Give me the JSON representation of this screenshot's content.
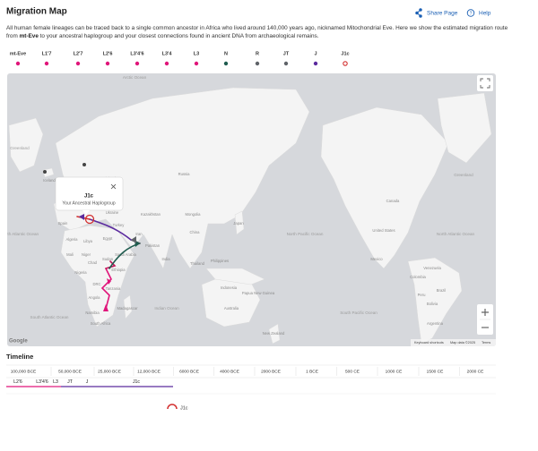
{
  "header": {
    "title": "Migration Map",
    "share": "Share Page",
    "help": "Help"
  },
  "description": [
    "All human female lineages can be traced back to a single common ancestor in Africa who lived around 140,000 years ago, nicknamed Mitochondrial Eve. Here we show the estimated migration route from ",
    "mt-Eve",
    " to your ancestral haplogroup and your closest connections found in ancient DNA from archaeological remains."
  ],
  "haplogroups": [
    {
      "label": "mt-Eve",
      "color": "#e0157a"
    },
    {
      "label": "L1'7",
      "color": "#e0157a"
    },
    {
      "label": "L2'7",
      "color": "#e0157a"
    },
    {
      "label": "L2'6",
      "color": "#e0157a"
    },
    {
      "label": "L3'4'6",
      "color": "#e0157a"
    },
    {
      "label": "L3'4",
      "color": "#e0157a"
    },
    {
      "label": "L3",
      "color": "#e0157a"
    },
    {
      "label": "N",
      "color": "#1f5c4f"
    },
    {
      "label": "R",
      "color": "#5f6368"
    },
    {
      "label": "JT",
      "color": "#5f6368"
    },
    {
      "label": "J",
      "color": "#5b2a9e"
    },
    {
      "label": "J1c",
      "color": "#d32f2f",
      "ring": true
    }
  ],
  "map": {
    "oceans": [
      "Arctic Ocean",
      "Greenland",
      "Greenland",
      "North Atlantic Ocean",
      "North Atlantic Ocean",
      "South Atlantic Ocean",
      "Indian Ocean",
      "North Pacific Ocean",
      "South Pacific Ocean"
    ],
    "labels": [
      "Russia",
      "Kazakhstan",
      "Mongolia",
      "China",
      "India",
      "Iran",
      "Saudi Arabia",
      "Egypt",
      "Libya",
      "Algeria",
      "Mali",
      "Niger",
      "Sudan",
      "Chad",
      "Ethiopia",
      "Nigeria",
      "DRC",
      "Tanzania",
      "Angola",
      "Namibia",
      "South Africa",
      "Madagascar",
      "Australia",
      "Indonesia",
      "Japan",
      "Philippines",
      "Papua New Guinea",
      "Canada",
      "United States",
      "Mexico",
      "Venezuela",
      "Colombia",
      "Peru",
      "Brazil",
      "Bolivia",
      "Argentina",
      "Iceland",
      "Finland",
      "Ukraine",
      "Spain",
      "Turkey",
      "Pakistan",
      "Thailand",
      "New Zealand"
    ],
    "popup": {
      "title": "J1c",
      "subtitle": "Your Ancestral Haplogroup"
    },
    "attribution": "Google",
    "footer": [
      "Keyboard shortcuts",
      "Map data ©2025",
      "Terms"
    ]
  },
  "timeline": {
    "title": "Timeline",
    "ticks": [
      "100,000 BCE",
      "50,000 BCE",
      "25,000 BCE",
      "12,000 BCE",
      "6000 BCE",
      "4000 BCE",
      "2000 BCE",
      "1 BCE",
      "500 CE",
      "1000 CE",
      "1500 CE",
      "2000 CE"
    ],
    "segments": [
      {
        "label": "L2'6",
        "color": "#e0157a"
      },
      {
        "label": "L3'4'6",
        "color": "#e0157a"
      },
      {
        "label": "L3",
        "color": "#e0157a"
      },
      {
        "label": "JT",
        "color": "#5b2a9e"
      },
      {
        "label": "J",
        "color": "#5b2a9e"
      },
      {
        "label": "J1c",
        "color": "#5b2a9e"
      }
    ],
    "marker": "J1c"
  }
}
